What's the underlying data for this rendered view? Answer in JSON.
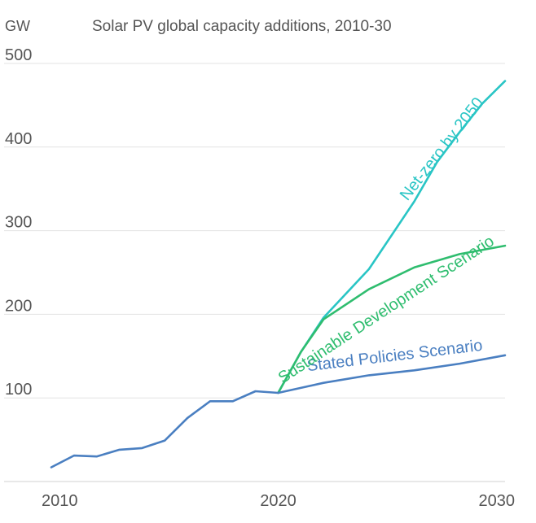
{
  "chart_data": {
    "type": "line",
    "title": "Solar PV global capacity additions, 2010-30",
    "ylabel": "GW",
    "xlabel": "",
    "ylim": [
      0,
      500
    ],
    "yticks": [
      100,
      200,
      300,
      400,
      500
    ],
    "xticks": [
      2010,
      2020,
      2030
    ],
    "grid": true,
    "series": [
      {
        "name": "Stated Policies Scenario",
        "color": "#4a7fc1",
        "x": [
          2010,
          2011,
          2012,
          2013,
          2014,
          2015,
          2016,
          2017,
          2018,
          2019,
          2020,
          2022,
          2024,
          2026,
          2028,
          2030
        ],
        "y": [
          17,
          31,
          30,
          38,
          40,
          49,
          76,
          96,
          96,
          108,
          106,
          118,
          127,
          133,
          141,
          151
        ]
      },
      {
        "name": "Sustainable Development Scenario",
        "color": "#2fbd6f",
        "x": [
          2020,
          2021,
          2022,
          2024,
          2026,
          2028,
          2030
        ],
        "y": [
          106,
          155,
          194,
          230,
          256,
          272,
          282
        ]
      },
      {
        "name": "Net-zero by 2050",
        "color": "#29c5c5",
        "x": [
          2020,
          2021,
          2022,
          2024,
          2026,
          2027,
          2028,
          2029,
          2030
        ],
        "y": [
          106,
          155,
          196,
          254,
          335,
          382,
          418,
          452,
          479
        ]
      }
    ]
  }
}
